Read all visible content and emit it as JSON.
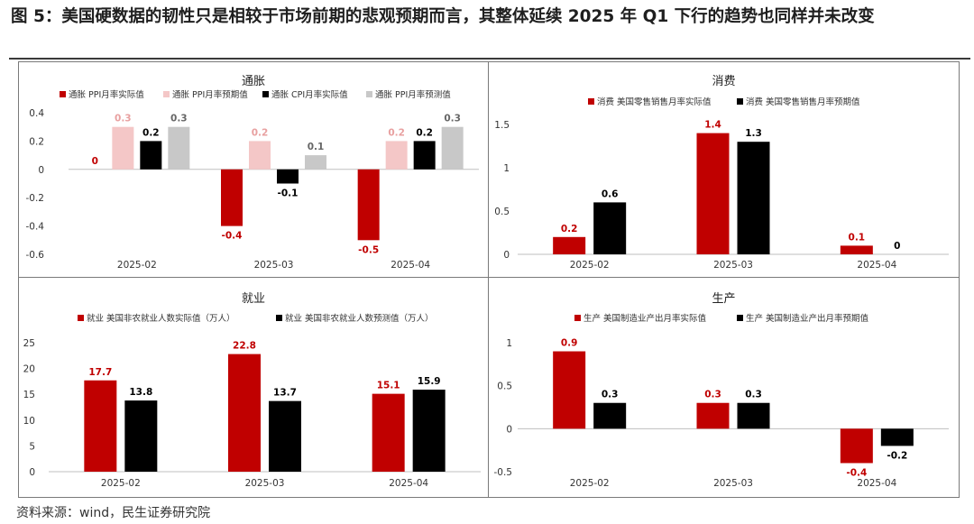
{
  "figure": {
    "title": "图 5：美国硬数据的韧性只是相较于市场前期的悲观预期而言，其整体延续 2025 年 Q1 下行的趋势也同样并未改变",
    "source": "资料来源：wind，民生证券研究院"
  },
  "colors": {
    "red": "#c00000",
    "pink": "#f4c7c7",
    "black": "#000000",
    "gray": "#c8c8c8"
  },
  "chart_data": [
    {
      "id": "inflation",
      "type": "bar",
      "title": "通胀",
      "categories": [
        "2025-02",
        "2025-03",
        "2025-04"
      ],
      "ylim": [
        -0.6,
        0.4
      ],
      "yticks": [
        "0.4",
        "0.2",
        "0",
        "-0.2",
        "-0.4",
        "-0.6"
      ],
      "ytick_values": [
        0.4,
        0.2,
        0,
        -0.2,
        -0.4,
        -0.6
      ],
      "series": [
        {
          "name": "通胀 PPI月率实际值",
          "color": "red",
          "values": [
            0,
            -0.4,
            -0.5
          ],
          "labels": [
            "0",
            "-0.4",
            "-0.5"
          ]
        },
        {
          "name": "通胀 PPI月率预期值",
          "color": "pink",
          "values": [
            0.3,
            0.2,
            0.2
          ],
          "labels": [
            "0.3",
            "0.2",
            "0.2"
          ]
        },
        {
          "name": "通胀 CPI月率实际值",
          "color": "black",
          "values": [
            0.2,
            -0.1,
            0.2
          ],
          "labels": [
            "0.2",
            "-0.1",
            "0.2"
          ]
        },
        {
          "name": "通胀 PPI月率预测值",
          "color": "gray",
          "values": [
            0.3,
            0.1,
            0.3
          ],
          "labels": [
            "0.3",
            "0.1",
            "0.3"
          ]
        }
      ],
      "legend": "top"
    },
    {
      "id": "consumption",
      "type": "bar",
      "title": "消费",
      "categories": [
        "2025-02",
        "2025-03",
        "2025-04"
      ],
      "ylim": [
        0,
        1.5
      ],
      "yticks": [
        "1.5",
        "1",
        "0.5",
        "0"
      ],
      "ytick_values": [
        1.5,
        1,
        0.5,
        0
      ],
      "series": [
        {
          "name": "消费 美国零售销售月率实际值",
          "color": "red",
          "values": [
            0.2,
            1.4,
            0.1
          ],
          "labels": [
            "0.2",
            "1.4",
            "0.1"
          ]
        },
        {
          "name": "消费 美国零售销售月率预期值",
          "color": "black",
          "values": [
            0.6,
            1.3,
            0
          ],
          "labels": [
            "0.6",
            "1.3",
            "0"
          ]
        }
      ],
      "legend": "top"
    },
    {
      "id": "employment",
      "type": "bar",
      "title": "就业",
      "categories": [
        "2025-02",
        "2025-03",
        "2025-04"
      ],
      "ylim": [
        0,
        25
      ],
      "yticks": [
        "25",
        "20",
        "15",
        "10",
        "5",
        "0"
      ],
      "ytick_values": [
        25,
        20,
        15,
        10,
        5,
        0
      ],
      "series": [
        {
          "name": "就业 美国非农就业人数实际值（万人）",
          "color": "red",
          "values": [
            17.7,
            22.8,
            15.1
          ],
          "labels": [
            "17.7",
            "22.8",
            "15.1"
          ]
        },
        {
          "name": "就业 美国非农就业人数预测值（万人）",
          "color": "black",
          "values": [
            13.8,
            13.7,
            15.9
          ],
          "labels": [
            "13.8",
            "13.7",
            "15.9"
          ]
        }
      ],
      "legend": "top"
    },
    {
      "id": "production",
      "type": "bar",
      "title": "生产",
      "categories": [
        "2025-02",
        "2025-03",
        "2025-04"
      ],
      "ylim": [
        -0.5,
        1
      ],
      "yticks": [
        "1",
        "0.5",
        "0",
        "-0.5"
      ],
      "ytick_values": [
        1,
        0.5,
        0,
        -0.5
      ],
      "series": [
        {
          "name": "生产 美国制造业产出月率实际值",
          "color": "red",
          "values": [
            0.9,
            0.3,
            -0.4
          ],
          "labels": [
            "0.9",
            "0.3",
            "-0.4"
          ]
        },
        {
          "name": "生产 美国制造业产出月率预期值",
          "color": "black",
          "values": [
            0.3,
            0.3,
            -0.2
          ],
          "labels": [
            "0.3",
            "0.3",
            "-0.2"
          ]
        }
      ],
      "legend": "top"
    }
  ]
}
